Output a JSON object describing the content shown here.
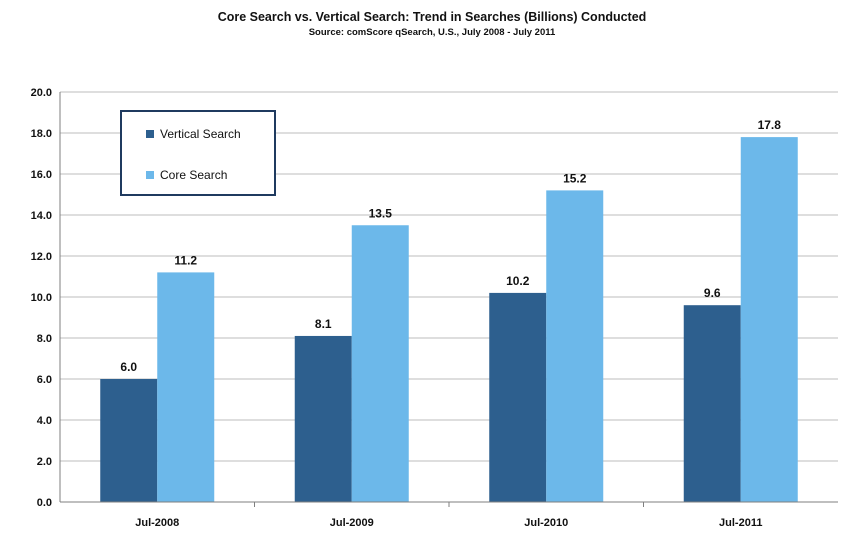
{
  "header": {
    "title": "Core Search vs. Vertical Search: Trend in Searches (Billions) Conducted",
    "subtitle": "Source: comScore qSearch, U.S., July 2008 - July 2011"
  },
  "colors": {
    "vertical": "#2d5f8e",
    "core": "#6cb8ea",
    "grid": "#bdbdbd",
    "axis": "#7f7f7f",
    "legend_border": "#1f3a5f"
  },
  "chart_data": {
    "type": "bar",
    "title": "Core Search vs. Vertical Search: Trend in Searches (Billions) Conducted",
    "subtitle": "Source: comScore qSearch, U.S., July 2008 - July 2011",
    "categories": [
      "Jul-2008",
      "Jul-2009",
      "Jul-2010",
      "Jul-2011"
    ],
    "series": [
      {
        "name": "Vertical Search",
        "values": [
          6.0,
          8.1,
          10.2,
          9.6
        ]
      },
      {
        "name": "Core Search",
        "values": [
          11.2,
          13.5,
          15.2,
          17.8
        ]
      }
    ],
    "data_labels": [
      [
        "6.0",
        "8.1",
        "10.2",
        "9.6"
      ],
      [
        "11.2",
        "13.5",
        "15.2",
        "17.8"
      ]
    ],
    "ylim": [
      0,
      20
    ],
    "yticks": [
      "0.0",
      "2.0",
      "4.0",
      "6.0",
      "8.0",
      "10.0",
      "12.0",
      "14.0",
      "16.0",
      "18.0",
      "20.0"
    ],
    "xlabel": "",
    "ylabel": "",
    "grid": true,
    "legend_position": "top-left"
  }
}
